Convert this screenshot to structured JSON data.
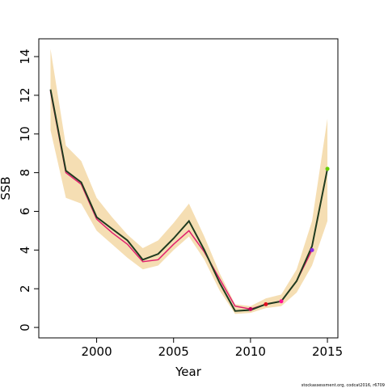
{
  "chart_data": {
    "type": "line",
    "x_label": "Year",
    "y_label": "SSB",
    "x": [
      1997,
      1998,
      1999,
      2000,
      2001,
      2002,
      2003,
      2004,
      2005,
      2006,
      2007,
      2008,
      2009,
      2010,
      2011,
      2012,
      2013,
      2014,
      2015
    ],
    "band": {
      "color": "#f5deb3",
      "upper": [
        14.4,
        9.4,
        8.6,
        6.7,
        5.7,
        4.8,
        4.1,
        4.5,
        5.4,
        6.4,
        4.7,
        2.8,
        1.2,
        1.1,
        1.5,
        1.7,
        3.0,
        5.5,
        10.8
      ],
      "lower": [
        10.2,
        6.7,
        6.4,
        5.0,
        4.3,
        3.6,
        3.0,
        3.2,
        4.0,
        4.7,
        3.5,
        1.9,
        0.7,
        0.75,
        1.0,
        1.1,
        1.8,
        3.2,
        5.5
      ]
    },
    "series": [
      {
        "color": "#e0206e",
        "values": [
          12.2,
          8.0,
          7.4,
          5.6,
          4.9,
          4.3,
          3.4,
          3.5,
          4.3,
          5.0,
          3.9,
          2.5,
          1.1,
          0.95,
          1.2,
          1.35,
          2.4,
          4.0,
          null
        ]
      },
      {
        "color": "#1f3a1f",
        "values": [
          12.3,
          8.1,
          7.5,
          5.7,
          5.1,
          4.5,
          3.5,
          3.8,
          4.6,
          5.5,
          4.0,
          2.3,
          0.85,
          0.9,
          1.2,
          1.35,
          2.4,
          4.2,
          8.2
        ]
      }
    ],
    "points": {
      "x": [
        2010,
        2011,
        2012,
        2014,
        2015
      ],
      "values": [
        0.95,
        1.2,
        1.35,
        4.0,
        8.2
      ],
      "colors": [
        "#c0005a",
        "#e01020",
        "#ff1493",
        "#8a2be2",
        "#66cc00"
      ]
    },
    "xlim": [
      1996.24,
      2015.68
    ],
    "ylim": [
      -0.54,
      14.92
    ],
    "xticks": [
      2000,
      2005,
      2010,
      2015
    ],
    "yticks": [
      0,
      2,
      4,
      6,
      8,
      10,
      12,
      14
    ],
    "footnote": "stockassessment.org, codcat2016, r6709"
  }
}
